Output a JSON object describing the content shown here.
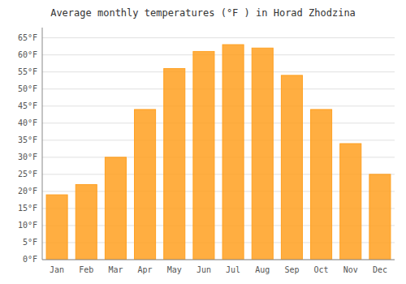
{
  "chart_data": {
    "type": "bar",
    "title": "Average monthly temperatures (°F ) in Horad Zhodzina",
    "categories": [
      "Jan",
      "Feb",
      "Mar",
      "Apr",
      "May",
      "Jun",
      "Jul",
      "Aug",
      "Sep",
      "Oct",
      "Nov",
      "Dec"
    ],
    "values": [
      19,
      22,
      30,
      44,
      56,
      61,
      63,
      62,
      54,
      44,
      34,
      25
    ],
    "color": "#FFA020",
    "ylim": [
      0,
      68
    ],
    "yticks": [
      {
        "value": 0,
        "label": "0°F"
      },
      {
        "value": 5,
        "label": "5°F"
      },
      {
        "value": 10,
        "label": "10°F"
      },
      {
        "value": 15,
        "label": "15°F"
      },
      {
        "value": 20,
        "label": "20°F"
      },
      {
        "value": 25,
        "label": "25°F"
      },
      {
        "value": 30,
        "label": "30°F"
      },
      {
        "value": 35,
        "label": "35°F"
      },
      {
        "value": 40,
        "label": "40°F"
      },
      {
        "value": 45,
        "label": "45°F"
      },
      {
        "value": 50,
        "label": "50°F"
      },
      {
        "value": 55,
        "label": "55°F"
      },
      {
        "value": 60,
        "label": "60°F"
      },
      {
        "value": 65,
        "label": "65°F"
      }
    ],
    "grid": true
  }
}
